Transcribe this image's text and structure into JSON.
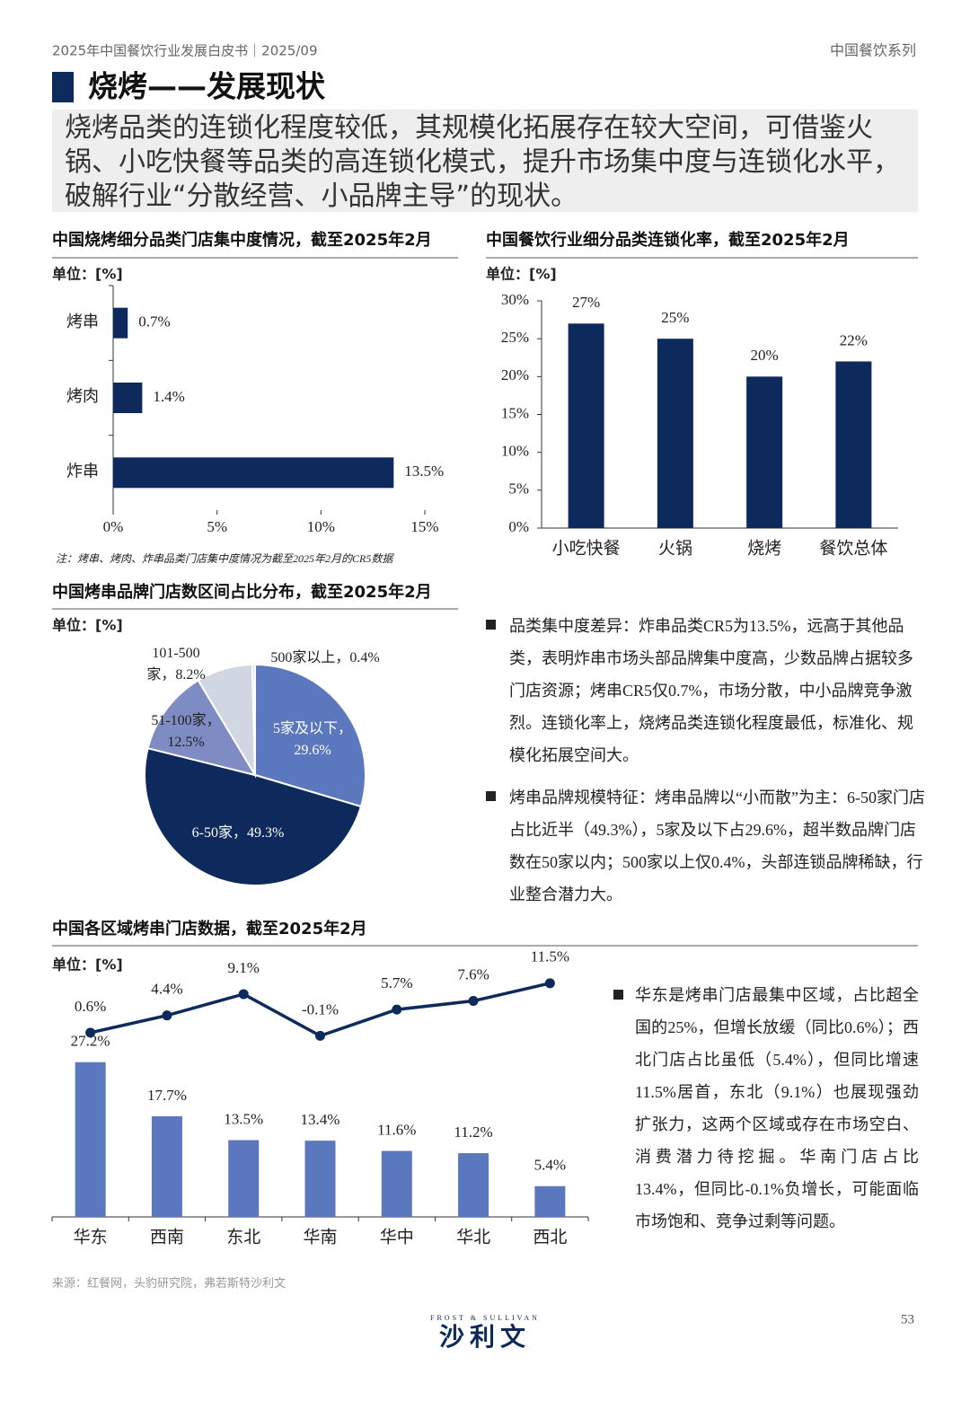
{
  "header": {
    "left": "2025年中国餐饮行业发展白皮书｜2025/09",
    "right": "中国餐饮系列"
  },
  "title": "烧烤——发展现状",
  "summary": "烧烤品类的连锁化程度较低，其规模化拓展存在较大空间，可借鉴火锅、小吃快餐等品类的高连锁化模式，提升市场集中度与连锁化水平，破解行业“分散经营、小品牌主导”的现状。",
  "chart_data": [
    {
      "type": "hbar",
      "title": "中国烧烤细分品类门店集中度情况，截至2025年2月",
      "unit": "单位：[%]",
      "categories": [
        "烤串",
        "烤肉",
        "炸串"
      ],
      "values": [
        0.7,
        1.4,
        13.5
      ],
      "value_labels": [
        "0.7%",
        "1.4%",
        "13.5%"
      ],
      "color": "#0e2a5c",
      "xlim": [
        0,
        15
      ],
      "xticks": [
        {
          "value": 0,
          "label": "0%"
        },
        {
          "value": 5,
          "label": "5%"
        },
        {
          "value": 10,
          "label": "10%"
        },
        {
          "value": 15,
          "label": "15%"
        }
      ],
      "note": "注：烤串、烤肉、炸串品类门店集中度情况为截至2025年2月的CR5数据"
    },
    {
      "type": "bar",
      "title": "中国餐饮行业细分品类连锁化率，截至2025年2月",
      "unit": "单位：[%]",
      "categories": [
        "小吃快餐",
        "火锅",
        "烧烤",
        "餐饮总体"
      ],
      "values": [
        27,
        25,
        20,
        22
      ],
      "value_labels": [
        "27%",
        "25%",
        "20%",
        "22%"
      ],
      "color": "#0e2a5c",
      "ylim": [
        0,
        30
      ],
      "yticks": [
        {
          "value": 0,
          "label": "0%"
        },
        {
          "value": 5,
          "label": "5%"
        },
        {
          "value": 10,
          "label": "10%"
        },
        {
          "value": 15,
          "label": "15%"
        },
        {
          "value": 20,
          "label": "20%"
        },
        {
          "value": 25,
          "label": "25%"
        },
        {
          "value": 30,
          "label": "30%"
        }
      ]
    },
    {
      "type": "pie",
      "title": "中国烤串品牌门店数区间占比分布，截至2025年2月",
      "unit": "单位：[%]",
      "values": [
        29.6,
        49.3,
        12.5,
        8.2,
        0.4
      ],
      "value_labels": [
        "5家及以下，29.6%",
        "6-50家，49.3%",
        "51-100家，12.5%",
        "101-500家，8.2%",
        "500家以上，0.4%"
      ],
      "colors": [
        "#5b77bd",
        "#0e2a5c",
        "#7f8cc4",
        "#d0d6e2",
        "#dde1ea"
      ]
    },
    {
      "type": "combo",
      "title": "中国各区域烤串门店数据，截至2025年2月",
      "unit": "单位：[%]",
      "categories": [
        "华东",
        "西南",
        "东北",
        "华南",
        "华中",
        "华北",
        "西北"
      ],
      "ylim": [
        0,
        30
      ],
      "y2lim": [
        -2,
        18
      ],
      "series": [
        {
          "type": "bar",
          "color": "#5b77bd",
          "values": [
            27.2,
            17.7,
            13.5,
            13.4,
            11.6,
            11.2,
            5.4
          ],
          "value_labels": [
            "27.2%",
            "17.7%",
            "13.5%",
            "13.4%",
            "11.6%",
            "11.2%",
            "5.4%"
          ]
        },
        {
          "type": "line",
          "axis": "y2",
          "color": "#0e2a5c",
          "values": [
            0.6,
            4.4,
            9.1,
            -0.1,
            5.7,
            7.6,
            11.5
          ],
          "value_labels": [
            "0.6%",
            "4.4%",
            "9.1%",
            "-0.1%",
            "5.7%",
            "7.6%",
            "11.5%"
          ]
        }
      ]
    }
  ],
  "bullets": [
    "品类集中度差异：炸串品类CR5为13.5%，远高于其他品类，表明炸串市场头部品牌集中度高，少数品牌占据较多门店资源；烤串CR5仅0.7%，市场分散，中小品牌竞争激烈。连锁化率上，烧烤品类连锁化程度最低，标准化、规模化拓展空间大。",
    "烤串品牌规模特征：烤串品牌以“小而散”为主：6-50家门店占比近半（49.3%），5家及以下占29.6%，超半数品牌门店数在50家以内；500家以上仅0.4%，头部连锁品牌稀缺，行业整合潜力大。",
    "华东是烤串门店最集中区域，占比超全国的25%，但增长放缓（同比0.6%）；西北门店占比虽低（5.4%），但同比增速11.5%居首，东北（9.1%）也展现强劲扩张力，这两个区域或存在市场空白、消费潜力待挖掘。华南门店占比13.4%，但同比-0.1%负增长，可能面临市场饱和、竞争过剩等问题。"
  ],
  "source": "来源：红餐网，头豹研究院，弗若斯特沙利文",
  "footer": {
    "logo_small": "FROST & SULLIVAN",
    "logo": "沙利文",
    "page": "53"
  }
}
